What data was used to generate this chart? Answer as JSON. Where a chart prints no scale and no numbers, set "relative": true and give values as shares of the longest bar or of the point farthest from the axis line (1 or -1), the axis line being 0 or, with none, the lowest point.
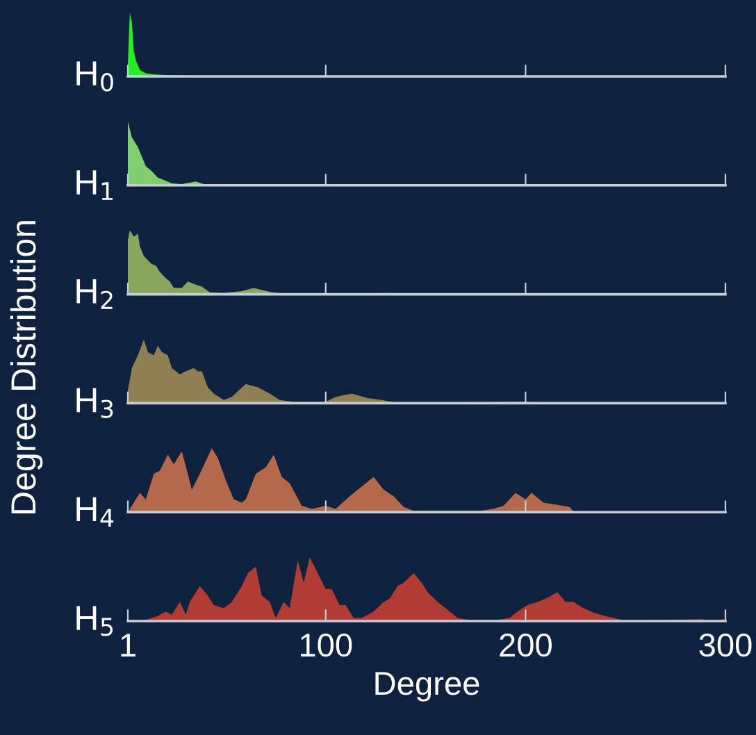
{
  "chart_data": [
    {
      "type": "area",
      "title": "H$_{0}$",
      "ylabel": "Degree Distribution",
      "relative": true,
      "tick_labels": false,
      "color": "#22ee22",
      "xlim": [
        1,
        300
      ],
      "xticks": [
        {
          "value": 1,
          "label": null
        },
        {
          "value": 100,
          "label": null
        },
        {
          "value": 200,
          "label": null
        },
        {
          "value": 300,
          "label": null
        }
      ],
      "x": [
        1,
        2,
        3,
        4,
        5,
        7,
        10,
        15,
        24,
        47,
        63,
        300
      ],
      "values": [
        0.2,
        1.0,
        0.85,
        0.4,
        0.25,
        0.1,
        0.05,
        0.03,
        0.015,
        0.005,
        0,
        0
      ]
    },
    {
      "type": "area",
      "title": "H$_{1}$",
      "relative": true,
      "tick_labels": false,
      "color": "#7fcf6f",
      "xlim": [
        1,
        300
      ],
      "xticks": [
        {
          "value": 1,
          "label": null
        },
        {
          "value": 100,
          "label": null
        },
        {
          "value": 200,
          "label": null
        },
        {
          "value": 300,
          "label": null
        }
      ],
      "x": [
        1,
        3,
        6,
        8,
        10,
        13,
        16,
        20,
        23,
        28,
        35,
        39,
        46,
        79,
        91,
        300
      ],
      "values": [
        1.0,
        0.75,
        0.6,
        0.45,
        0.3,
        0.22,
        0.12,
        0.07,
        0.03,
        0.02,
        0.06,
        0.02,
        0.01,
        0.005,
        0,
        0
      ]
    },
    {
      "type": "area",
      "title": "H$_{2}$",
      "relative": true,
      "tick_labels": false,
      "color": "#8aa65e",
      "xlim": [
        1,
        300
      ],
      "xticks": [
        {
          "value": 1,
          "label": null
        },
        {
          "value": 100,
          "label": null
        },
        {
          "value": 200,
          "label": null
        },
        {
          "value": 300,
          "label": null
        }
      ],
      "x": [
        1,
        2,
        4,
        6,
        7,
        9,
        12,
        13,
        15,
        17,
        20,
        22,
        24,
        28,
        31,
        35,
        38,
        42,
        49,
        58,
        64,
        69,
        73,
        79,
        102,
        133,
        149,
        274,
        300
      ],
      "values": [
        0.85,
        1.0,
        0.9,
        0.95,
        0.75,
        0.6,
        0.5,
        0.47,
        0.45,
        0.35,
        0.25,
        0.2,
        0.1,
        0.1,
        0.2,
        0.15,
        0.12,
        0.03,
        0.02,
        0.05,
        0.1,
        0.06,
        0.03,
        0.01,
        0.005,
        0.02,
        0,
        0.01,
        0
      ]
    },
    {
      "type": "area",
      "title": "H$_{3}$",
      "relative": true,
      "tick_labels": false,
      "color": "#8f7f52",
      "xlim": [
        1,
        300
      ],
      "xticks": [
        {
          "value": 1,
          "label": null
        },
        {
          "value": 100,
          "label": null
        },
        {
          "value": 200,
          "label": null
        },
        {
          "value": 300,
          "label": null
        }
      ],
      "x": [
        1,
        3,
        6,
        9,
        11,
        14,
        16,
        18,
        21,
        23,
        27,
        30,
        34,
        36,
        38,
        41,
        44,
        49,
        53,
        60,
        66,
        72,
        77,
        84,
        100,
        105,
        113,
        121,
        128,
        135,
        200,
        219,
        228,
        300
      ],
      "values": [
        0.2,
        0.55,
        0.75,
        1.0,
        0.8,
        0.75,
        0.9,
        0.8,
        0.75,
        0.55,
        0.45,
        0.5,
        0.55,
        0.5,
        0.5,
        0.25,
        0.15,
        0.05,
        0.1,
        0.3,
        0.25,
        0.15,
        0.05,
        0.02,
        0.02,
        0.1,
        0.15,
        0.08,
        0.05,
        0.01,
        0.02,
        0.01,
        0,
        0
      ]
    },
    {
      "type": "area",
      "title": "H$_{4}$",
      "relative": true,
      "tick_labels": false,
      "color": "#b46a4a",
      "xlim": [
        1,
        300
      ],
      "xticks": [
        {
          "value": 1,
          "label": null
        },
        {
          "value": 100,
          "label": null
        },
        {
          "value": 200,
          "label": null
        },
        {
          "value": 300,
          "label": null
        }
      ],
      "x": [
        1,
        7,
        10,
        14,
        17,
        21,
        24,
        28,
        31,
        33,
        37,
        43,
        46,
        50,
        54,
        58,
        60,
        65,
        70,
        74,
        78,
        82,
        88,
        93,
        100,
        105,
        112,
        116,
        120,
        124,
        129,
        134,
        139,
        144,
        177,
        184,
        189,
        195,
        200,
        203,
        209,
        215,
        222,
        224,
        242,
        300
      ],
      "values": [
        0,
        0.3,
        0.2,
        0.6,
        0.65,
        0.9,
        0.75,
        0.95,
        0.6,
        0.35,
        0.6,
        1.0,
        0.85,
        0.5,
        0.2,
        0.15,
        0.2,
        0.6,
        0.7,
        0.9,
        0.55,
        0.45,
        0.1,
        0.05,
        0.1,
        0.05,
        0.25,
        0.35,
        0.45,
        0.55,
        0.35,
        0.25,
        0.08,
        0.02,
        0.02,
        0.05,
        0.1,
        0.3,
        0.2,
        0.3,
        0.15,
        0.12,
        0.08,
        0.01,
        0.005,
        0
      ]
    },
    {
      "type": "area",
      "title": "H$_{5}$",
      "relative": true,
      "tick_labels": "x",
      "color": "#b03c34",
      "xlim": [
        1,
        300
      ],
      "xticks": [
        1,
        100,
        200,
        300
      ],
      "xlabel": "Degree",
      "x": [
        1,
        10,
        16,
        20,
        23,
        27,
        30,
        32,
        37,
        41,
        44,
        49,
        53,
        58,
        61,
        65,
        68,
        72,
        75,
        79,
        82,
        86,
        89,
        92,
        96,
        100,
        103,
        107,
        110,
        114,
        118,
        124,
        129,
        132,
        136,
        139,
        144,
        148,
        151,
        156,
        160,
        166,
        172,
        186,
        192,
        196,
        201,
        206,
        210,
        216,
        220,
        224,
        229,
        235,
        240,
        244,
        249,
        260,
        288,
        293,
        299,
        300
      ],
      "values": [
        0,
        0.02,
        0.08,
        0.15,
        0.1,
        0.3,
        0.1,
        0.3,
        0.55,
        0.4,
        0.25,
        0.2,
        0.3,
        0.55,
        0.75,
        0.85,
        0.4,
        0.3,
        0.05,
        0.3,
        0.2,
        0.95,
        0.6,
        1.0,
        0.75,
        0.5,
        0.5,
        0.25,
        0.25,
        0.05,
        0.05,
        0.15,
        0.3,
        0.35,
        0.55,
        0.6,
        0.75,
        0.6,
        0.45,
        0.3,
        0.2,
        0.05,
        0.02,
        0.02,
        0.05,
        0.15,
        0.25,
        0.3,
        0.35,
        0.45,
        0.3,
        0.3,
        0.2,
        0.12,
        0.08,
        0.05,
        0.01,
        0.01,
        0.03,
        0,
        0.03,
        0
      ]
    }
  ]
}
